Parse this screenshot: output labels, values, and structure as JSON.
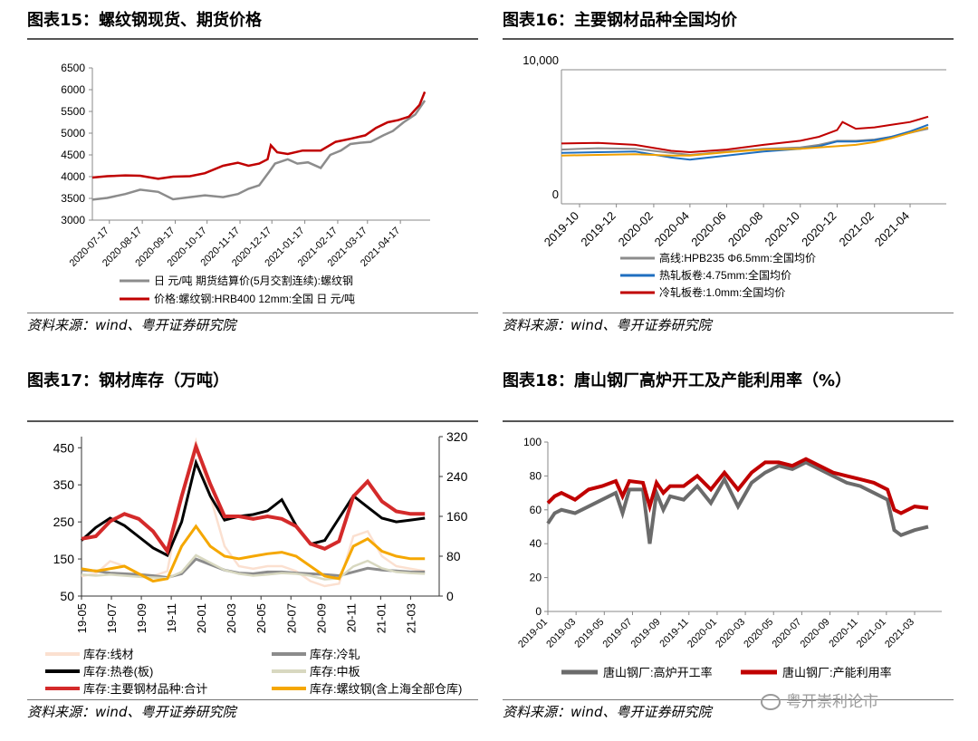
{
  "source_text": "资料来源：wind、粤开证券研究院",
  "watermark": "粤开崇利论市",
  "charts": [
    {
      "title": "图表15：螺纹钢现货、期货价格",
      "chart_data": {
        "type": "line",
        "ylim": [
          3000,
          6500
        ],
        "yticks": [
          "6500",
          "6000",
          "5500",
          "5000",
          "4500",
          "4000",
          "3500",
          "3000"
        ],
        "xlim": [
          "2020-07-01",
          "2021-05-15"
        ],
        "xticks": [
          "2020-07-17",
          "2020-08-17",
          "2020-09-17",
          "2020-10-17",
          "2020-11-17",
          "2020-12-17",
          "2021-01-17",
          "2021-02-17",
          "2021-03-17",
          "2021-04-17"
        ],
        "series": [
          {
            "name": "日 元/吨 期货结算价(5月交割连续):螺纹钢",
            "color": "#8c8c8c",
            "x": [
              "2020-07-01",
              "2020-07-15",
              "2020-08-01",
              "2020-08-15",
              "2020-09-01",
              "2020-09-15",
              "2020-10-01",
              "2020-10-15",
              "2020-11-01",
              "2020-11-15",
              "2020-11-25",
              "2020-12-05",
              "2020-12-15",
              "2020-12-20",
              "2021-01-01",
              "2021-01-10",
              "2021-01-20",
              "2021-02-01",
              "2021-02-10",
              "2021-02-20",
              "2021-03-01",
              "2021-03-10",
              "2021-03-20",
              "2021-04-01",
              "2021-04-10",
              "2021-04-20",
              "2021-05-01",
              "2021-05-10"
            ],
            "y": [
              3470,
              3510,
              3600,
              3700,
              3650,
              3480,
              3530,
              3570,
              3530,
              3600,
              3720,
              3800,
              4130,
              4300,
              4400,
              4300,
              4330,
              4200,
              4500,
              4600,
              4750,
              4780,
              4800,
              4950,
              5050,
              5250,
              5430,
              5750
            ]
          },
          {
            "name": "价格:螺纹钢:HRB400 12mm:全国 日 元/吨",
            "color": "#c00000",
            "x": [
              "2020-07-01",
              "2020-07-15",
              "2020-08-01",
              "2020-08-15",
              "2020-09-01",
              "2020-09-15",
              "2020-10-01",
              "2020-10-15",
              "2020-11-01",
              "2020-11-15",
              "2020-11-25",
              "2020-12-05",
              "2020-12-13",
              "2020-12-16",
              "2020-12-22",
              "2021-01-01",
              "2021-01-15",
              "2021-02-01",
              "2021-02-15",
              "2021-03-01",
              "2021-03-15",
              "2021-03-25",
              "2021-04-05",
              "2021-04-15",
              "2021-04-25",
              "2021-05-05",
              "2021-05-10"
            ],
            "y": [
              3980,
              4010,
              4030,
              4020,
              3950,
              4000,
              4010,
              4080,
              4250,
              4320,
              4250,
              4300,
              4400,
              4720,
              4560,
              4520,
              4600,
              4600,
              4800,
              4870,
              4950,
              5120,
              5250,
              5300,
              5380,
              5650,
              5950
            ]
          }
        ]
      }
    },
    {
      "title": "图表16：主要钢材品种全国均价",
      "chart_data": {
        "type": "line",
        "ylim": [
          0,
          10000
        ],
        "yticks": [
          "10,000",
          "0"
        ],
        "xlim": [
          "2019-09-01",
          "2021-05-01"
        ],
        "xticks": [
          "2019-10",
          "2019-12",
          "2020-02",
          "2020-04",
          "2020-06",
          "2020-08",
          "2020-10",
          "2020-12",
          "2021-02",
          "2021-04"
        ],
        "series": [
          {
            "name": "高线:HPB235 Φ6.5mm:全国均价",
            "color": "#8c8c8c",
            "x": [
              "2019-09-01",
              "2019-11-01",
              "2020-01-01",
              "2020-03-01",
              "2020-04-01",
              "2020-06-01",
              "2020-08-01",
              "2020-10-01",
              "2020-11-01",
              "2020-12-01",
              "2021-01-01",
              "2021-02-01",
              "2021-03-01",
              "2021-04-01",
              "2021-05-01"
            ],
            "y": [
              4050,
              4150,
              4100,
              3800,
              3650,
              3900,
              4100,
              4200,
              4400,
              4700,
              4700,
              4800,
              5000,
              5300,
              5600
            ]
          },
          {
            "name": "热轧板卷:4.75mm:全国均价",
            "color": "#1f6fc0",
            "x": [
              "2019-09-01",
              "2019-11-01",
              "2020-01-01",
              "2020-03-01",
              "2020-04-01",
              "2020-06-01",
              "2020-08-01",
              "2020-10-01",
              "2020-11-01",
              "2020-12-01",
              "2021-01-01",
              "2021-02-01",
              "2021-03-01",
              "2021-04-01",
              "2021-05-01"
            ],
            "y": [
              3800,
              3850,
              3900,
              3450,
              3300,
              3600,
              3900,
              4100,
              4300,
              4650,
              4650,
              4750,
              5000,
              5400,
              5900
            ]
          },
          {
            "name": "冷轧板卷:1.0mm:全国均价",
            "color": "#c00000",
            "x": [
              "2019-09-01",
              "2019-11-01",
              "2020-01-01",
              "2020-03-01",
              "2020-04-01",
              "2020-06-01",
              "2020-08-01",
              "2020-10-01",
              "2020-11-01",
              "2020-12-01",
              "2020-12-10",
              "2021-01-01",
              "2021-02-01",
              "2021-03-01",
              "2021-04-01",
              "2021-05-01"
            ],
            "y": [
              4500,
              4550,
              4400,
              3950,
              3850,
              4050,
              4400,
              4700,
              5000,
              5500,
              6100,
              5600,
              5700,
              5900,
              6100,
              6500
            ]
          },
          {
            "name": "",
            "color": "#f0a000",
            "x": [
              "2019-09-01",
              "2019-11-01",
              "2020-01-01",
              "2020-03-01",
              "2020-04-01",
              "2020-06-01",
              "2020-08-01",
              "2020-10-01",
              "2020-11-01",
              "2020-12-01",
              "2021-01-01",
              "2021-02-01",
              "2021-03-01",
              "2021-04-01",
              "2021-05-01"
            ],
            "y": [
              3600,
              3650,
              3700,
              3600,
              3600,
              3850,
              4050,
              4100,
              4200,
              4300,
              4400,
              4600,
              4900,
              5300,
              5700
            ]
          }
        ]
      }
    },
    {
      "title": "图表17：钢材库存（万吨）",
      "chart_data": {
        "type": "line",
        "ylim": [
          50,
          480
        ],
        "yticks": [
          "450",
          "350",
          "250",
          "150",
          "50"
        ],
        "y2lim": [
          0,
          320
        ],
        "y2ticks": [
          "320",
          "240",
          "160",
          "80",
          "0"
        ],
        "xlim": [
          0,
          25
        ],
        "xticks": [
          "19-05",
          "19-07",
          "19-09",
          "19-11",
          "20-01",
          "20-03",
          "20-05",
          "20-07",
          "20-09",
          "20-11",
          "21-01",
          "21-03"
        ],
        "series": [
          {
            "name": "库存:线材",
            "color": "#fbe0d0",
            "axis": "right",
            "width": 2.5,
            "x": [
              0,
              1,
              2,
              3,
              4,
              5,
              6,
              7,
              8,
              9,
              10,
              11,
              12,
              13,
              14,
              15,
              16,
              17,
              18,
              19,
              20,
              21,
              22,
              23,
              24
            ],
            "y": [
              40,
              45,
              70,
              60,
              45,
              40,
              50,
              200,
              310,
              200,
              100,
              60,
              55,
              60,
              60,
              50,
              30,
              20,
              25,
              120,
              130,
              80,
              60,
              55,
              50
            ]
          },
          {
            "name": "库存:冷轧",
            "color": "#8c8c8c",
            "axis": "left",
            "width": 3,
            "x": [
              0,
              1,
              2,
              3,
              4,
              5,
              6,
              7,
              8,
              9,
              10,
              11,
              12,
              13,
              14,
              15,
              16,
              17,
              18,
              19,
              20,
              21,
              22,
              23,
              24
            ],
            "y": [
              120,
              118,
              112,
              110,
              108,
              105,
              100,
              110,
              150,
              135,
              120,
              112,
              110,
              115,
              115,
              112,
              110,
              108,
              105,
              115,
              125,
              120,
              118,
              115,
              115
            ]
          },
          {
            "name": "库存:热卷(板)",
            "color": "#000000",
            "axis": "left",
            "width": 3,
            "x": [
              0,
              1,
              2,
              3,
              4,
              5,
              6,
              7,
              8,
              9,
              10,
              11,
              12,
              13,
              14,
              15,
              16,
              17,
              18,
              19,
              20,
              21,
              22,
              23,
              24
            ],
            "y": [
              200,
              235,
              260,
              240,
              210,
              180,
              160,
              250,
              410,
              320,
              255,
              265,
              270,
              280,
              310,
              240,
              190,
              200,
              260,
              320,
              290,
              260,
              250,
              255,
              260
            ]
          },
          {
            "name": "库存:中板",
            "color": "#d8d8c0",
            "axis": "left",
            "width": 2.5,
            "x": [
              0,
              1,
              2,
              3,
              4,
              5,
              6,
              7,
              8,
              9,
              10,
              11,
              12,
              13,
              14,
              15,
              16,
              17,
              18,
              19,
              20,
              21,
              22,
              23,
              24
            ],
            "y": [
              108,
              105,
              108,
              105,
              102,
              100,
              98,
              115,
              160,
              140,
              120,
              110,
              105,
              108,
              112,
              110,
              105,
              95,
              98,
              130,
              145,
              125,
              115,
              112,
              110
            ]
          },
          {
            "name": "库存:主要钢材品种:合计",
            "color": "#d42a2a",
            "axis": "right",
            "width": 4,
            "x": [
              0,
              1,
              2,
              3,
              4,
              5,
              6,
              7,
              8,
              9,
              10,
              11,
              12,
              13,
              14,
              15,
              16,
              17,
              18,
              19,
              20,
              21,
              22,
              23,
              24
            ],
            "y": [
              115,
              120,
              150,
              165,
              155,
              130,
              90,
              200,
              300,
              225,
              160,
              160,
              155,
              160,
              155,
              140,
              105,
              95,
              110,
              200,
              230,
              190,
              170,
              165,
              165
            ]
          },
          {
            "name": "库存:螺纹钢(含上海全部仓库)",
            "color": "#f5a700",
            "axis": "right",
            "width": 3,
            "x": [
              0,
              1,
              2,
              3,
              4,
              5,
              6,
              7,
              8,
              9,
              10,
              11,
              12,
              13,
              14,
              15,
              16,
              17,
              18,
              19,
              20,
              21,
              22,
              23,
              24
            ],
            "y": [
              55,
              50,
              55,
              60,
              45,
              30,
              35,
              100,
              140,
              100,
              80,
              75,
              80,
              85,
              88,
              80,
              60,
              40,
              35,
              100,
              115,
              90,
              80,
              75,
              75
            ]
          }
        ]
      }
    },
    {
      "title": "图表18：唐山钢厂高炉开工及产能利用率（%）",
      "chart_data": {
        "type": "line",
        "ylim": [
          0,
          100
        ],
        "yticks": [
          "100",
          "80",
          "60",
          "40",
          "20",
          "0"
        ],
        "xlim": [
          0,
          29
        ],
        "xticks": [
          "2019-01",
          "2019-03",
          "2019-05",
          "2019-07",
          "2019-09",
          "2019-11",
          "2020-01",
          "2020-03",
          "2020-05",
          "2020-07",
          "2020-09",
          "2020-11",
          "2021-01",
          "2021-03"
        ],
        "series": [
          {
            "name": "唐山钢厂:高炉开工率",
            "color": "#6b6b6b",
            "x": [
              0,
              0.5,
              1,
              2,
              3,
              4,
              5,
              5.5,
              6,
              7,
              7.5,
              8,
              8.5,
              9,
              10,
              11,
              12,
              13,
              14,
              15,
              16,
              17,
              18,
              19,
              20,
              21,
              22,
              23,
              24,
              25,
              25.5,
              26,
              27,
              28
            ],
            "y": [
              52,
              58,
              60,
              58,
              62,
              66,
              70,
              58,
              72,
              72,
              40,
              70,
              60,
              68,
              66,
              74,
              64,
              78,
              62,
              76,
              82,
              86,
              84,
              88,
              84,
              80,
              76,
              74,
              70,
              66,
              48,
              45,
              48,
              50
            ]
          },
          {
            "name": "唐山钢厂:产能利用率",
            "color": "#c00000",
            "x": [
              0,
              0.5,
              1,
              2,
              3,
              4,
              5,
              5.5,
              6,
              7,
              7.5,
              8,
              8.5,
              9,
              10,
              11,
              12,
              13,
              14,
              15,
              16,
              17,
              18,
              19,
              20,
              21,
              22,
              23,
              24,
              25,
              25.5,
              26,
              27,
              28
            ],
            "y": [
              64,
              68,
              70,
              66,
              72,
              74,
              77,
              68,
              77,
              76,
              62,
              76,
              70,
              74,
              74,
              80,
              72,
              82,
              72,
              82,
              88,
              88,
              86,
              90,
              86,
              82,
              80,
              78,
              76,
              72,
              60,
              58,
              62,
              61
            ]
          }
        ]
      }
    }
  ]
}
